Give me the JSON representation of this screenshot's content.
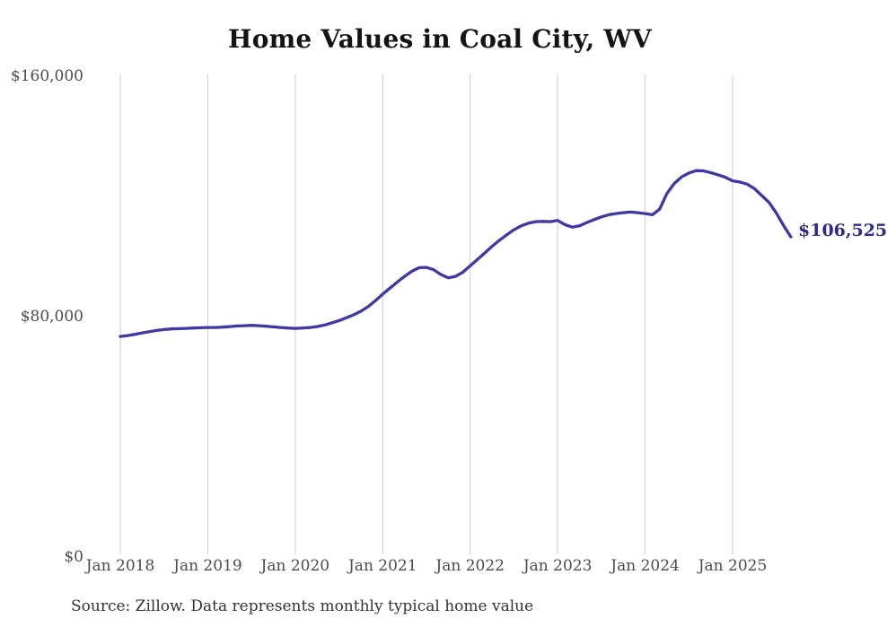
{
  "chart_data": {
    "type": "line",
    "title": "Home Values in Coal City, WV",
    "xlabel": "",
    "ylabel": "",
    "ylim": [
      0,
      160000
    ],
    "y_tick_labels": [
      "$160,000",
      "$80,000",
      "$0"
    ],
    "y_tick_values": [
      160000,
      80000,
      0
    ],
    "x_tick_labels": [
      "Jan 2018",
      "Jan 2019",
      "Jan 2020",
      "Jan 2021",
      "Jan 2022",
      "Jan 2023",
      "Jan 2024",
      "Jan 2025"
    ],
    "grid": "vertical-only",
    "legend": "none",
    "line_color": "#3e38a2",
    "gridline_color": "#cbcbcb",
    "end_label": "$106,525",
    "end_label_color": "#2e2b8f",
    "source_note": "Source: Zillow. Data represents monthly typical home value",
    "months": [
      "2018-01",
      "2018-02",
      "2018-03",
      "2018-04",
      "2018-05",
      "2018-06",
      "2018-07",
      "2018-08",
      "2018-09",
      "2018-10",
      "2018-11",
      "2018-12",
      "2019-01",
      "2019-02",
      "2019-03",
      "2019-04",
      "2019-05",
      "2019-06",
      "2019-07",
      "2019-08",
      "2019-09",
      "2019-10",
      "2019-11",
      "2019-12",
      "2020-01",
      "2020-02",
      "2020-03",
      "2020-04",
      "2020-05",
      "2020-06",
      "2020-07",
      "2020-08",
      "2020-09",
      "2020-10",
      "2020-11",
      "2020-12",
      "2021-01",
      "2021-02",
      "2021-03",
      "2021-04",
      "2021-05",
      "2021-06",
      "2021-07",
      "2021-08",
      "2021-09",
      "2021-10",
      "2021-11",
      "2021-12",
      "2022-01",
      "2022-02",
      "2022-03",
      "2022-04",
      "2022-05",
      "2022-06",
      "2022-07",
      "2022-08",
      "2022-09",
      "2022-10",
      "2022-11",
      "2022-12",
      "2023-01",
      "2023-02",
      "2023-03",
      "2023-04",
      "2023-05",
      "2023-06",
      "2023-07",
      "2023-08",
      "2023-09",
      "2023-10",
      "2023-11",
      "2023-12",
      "2024-01",
      "2024-02",
      "2024-03",
      "2024-04",
      "2024-05",
      "2024-06",
      "2024-07",
      "2024-08",
      "2024-09",
      "2024-10",
      "2024-11",
      "2024-12",
      "2025-01",
      "2025-02",
      "2025-03",
      "2025-04",
      "2025-05",
      "2025-06",
      "2025-07",
      "2025-08",
      "2025-09"
    ],
    "series": [
      {
        "name": "Monthly typical home value",
        "values": [
          73400,
          73700,
          74100,
          74600,
          75000,
          75400,
          75700,
          75900,
          76000,
          76100,
          76200,
          76300,
          76400,
          76400,
          76500,
          76700,
          76900,
          77000,
          77100,
          77000,
          76800,
          76600,
          76400,
          76200,
          76100,
          76200,
          76400,
          76700,
          77200,
          77900,
          78700,
          79600,
          80600,
          81800,
          83300,
          85300,
          87500,
          89500,
          91500,
          93400,
          95100,
          96300,
          96400,
          95600,
          94000,
          92900,
          93400,
          94800,
          96900,
          99000,
          101200,
          103400,
          105400,
          107200,
          108900,
          110200,
          111100,
          111600,
          111700,
          111600,
          112000,
          110600,
          109800,
          110200,
          111300,
          112300,
          113200,
          113900,
          114300,
          114600,
          114800,
          114600,
          114300,
          113900,
          115800,
          121000,
          124300,
          126500,
          127800,
          128600,
          128500,
          127900,
          127200,
          126400,
          125200,
          124800,
          124100,
          122600,
          120300,
          118000,
          114500,
          110300,
          106525
        ]
      }
    ],
    "last_value": 106525
  }
}
